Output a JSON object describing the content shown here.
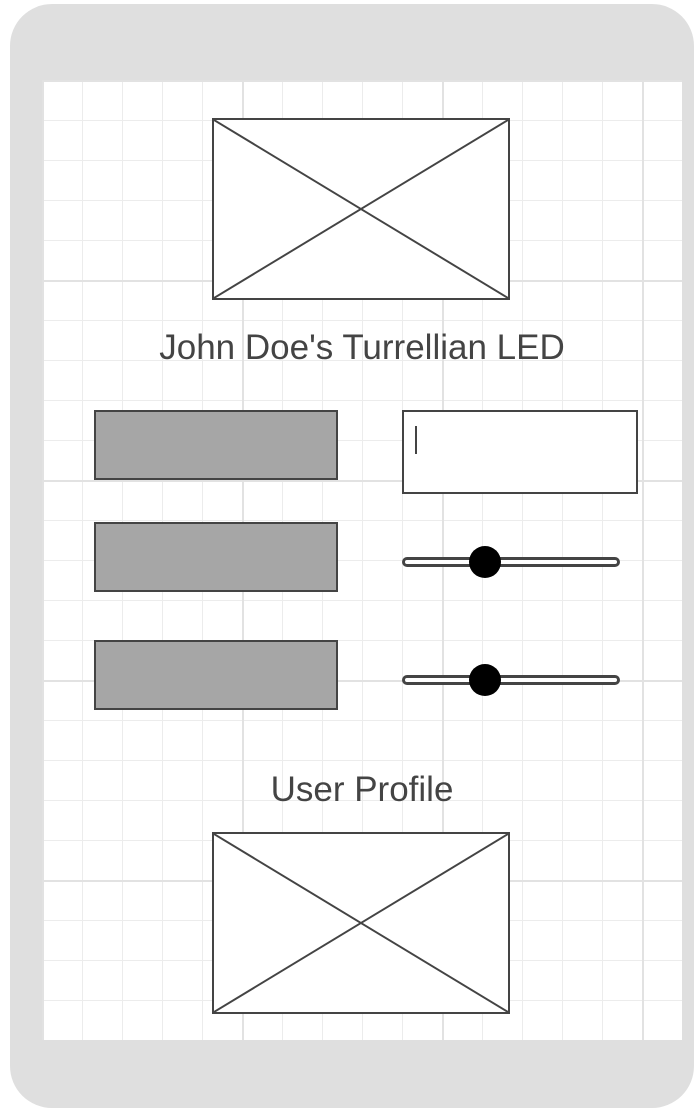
{
  "header": {
    "title": "John Doe's Turrellian LED"
  },
  "controls": {
    "sliders": [
      {
        "value": 0.38
      },
      {
        "value": 0.38
      }
    ],
    "text_input": {
      "value": ""
    }
  },
  "profile": {
    "title": "User Profile"
  },
  "colors": {
    "frame": "#dfdfdf",
    "stroke": "#444444",
    "button_fill": "#a6a6a6",
    "thumb": "#000000"
  }
}
